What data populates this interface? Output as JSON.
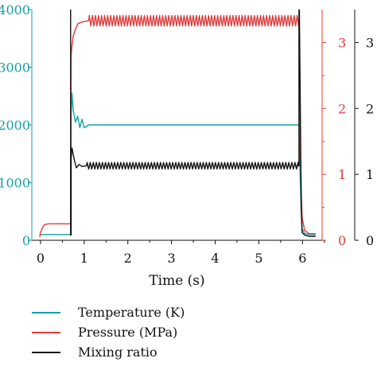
{
  "chart_data": {
    "type": "line",
    "xlabel": "Time (s)",
    "xlim": [
      -0.2,
      6.45
    ],
    "xticks": [
      0,
      1,
      2,
      3,
      4,
      5,
      6
    ],
    "y_axes": [
      {
        "id": "left",
        "color": "#14a0a6",
        "ylim": [
          0,
          4000
        ],
        "ticks": [
          0,
          1000,
          2000,
          3000,
          4000
        ]
      },
      {
        "id": "right1",
        "color": "#e23a3a",
        "ylim": [
          0,
          3.5
        ],
        "ticks": [
          0,
          1,
          2,
          3
        ]
      },
      {
        "id": "right2",
        "color": "#111111",
        "ylim": [
          0,
          3.5
        ],
        "ticks": [
          "0",
          "1",
          "2",
          "3"
        ]
      }
    ],
    "series": [
      {
        "name": "Temperature (K)",
        "axis": "left",
        "color": "#14a0a6",
        "x": [
          -0.02,
          0.7,
          0.7,
          0.72,
          0.75,
          0.8,
          0.85,
          0.9,
          0.95,
          1.0,
          1.1,
          5.92,
          5.93,
          5.95,
          5.97,
          5.99,
          6.05,
          6.15,
          6.3
        ],
        "y": [
          100,
          100,
          2150,
          2550,
          2250,
          2050,
          2150,
          1950,
          2100,
          1950,
          2000,
          2000,
          1600,
          1000,
          500,
          200,
          120,
          100,
          100
        ],
        "oscillation": {
          "from": 1.0,
          "to": 5.92,
          "amplitude": 150,
          "period": 0.07
        }
      },
      {
        "name": "Pressure (MPa)",
        "axis": "right1",
        "color": "#e23a3a",
        "x": [
          -0.02,
          0.0,
          0.05,
          0.1,
          0.2,
          0.4,
          0.69,
          0.7,
          0.72,
          0.75,
          0.8,
          0.85,
          0.9,
          1.0,
          1.1,
          5.92,
          5.93,
          5.95,
          5.97,
          5.99,
          6.05,
          6.15,
          6.3
        ],
        "y": [
          0.05,
          0.12,
          0.2,
          0.24,
          0.25,
          0.25,
          0.25,
          2.8,
          2.95,
          3.1,
          3.2,
          3.28,
          3.3,
          3.32,
          3.33,
          3.33,
          2.5,
          1.5,
          0.8,
          0.35,
          0.15,
          0.1,
          0.1
        ],
        "oscillation": {
          "from": 1.1,
          "to": 5.92,
          "amplitude": 0.08,
          "period": 0.07
        }
      },
      {
        "name": "Mixing ratio",
        "axis": "right2",
        "color": "#111111",
        "x": [
          -0.02,
          0.69,
          0.69,
          0.7,
          0.7,
          0.72,
          0.75,
          0.78,
          0.82,
          0.88,
          0.95,
          1.05,
          5.9,
          5.92,
          5.92,
          5.95,
          5.97,
          5.99,
          6.05,
          6.15,
          6.3
        ],
        "y": [
          4.1,
          4.1,
          0.08,
          0.08,
          1.25,
          1.4,
          1.3,
          1.2,
          1.1,
          1.15,
          1.12,
          1.13,
          1.13,
          1.13,
          4.1,
          2.0,
          0.5,
          0.12,
          0.08,
          0.06,
          0.06
        ],
        "oscillation": {
          "from": 1.05,
          "to": 5.9,
          "amplitude": 0.05,
          "period": 0.07
        }
      }
    ],
    "legend": {
      "position": "bottom-left",
      "items": [
        {
          "label": "Temperature (K)",
          "color": "#14a0a6"
        },
        {
          "label": "Pressure (MPa)",
          "color": "#e23a3a"
        },
        {
          "label": "Mixing ratio",
          "color": "#111111"
        }
      ]
    },
    "grid": false
  }
}
